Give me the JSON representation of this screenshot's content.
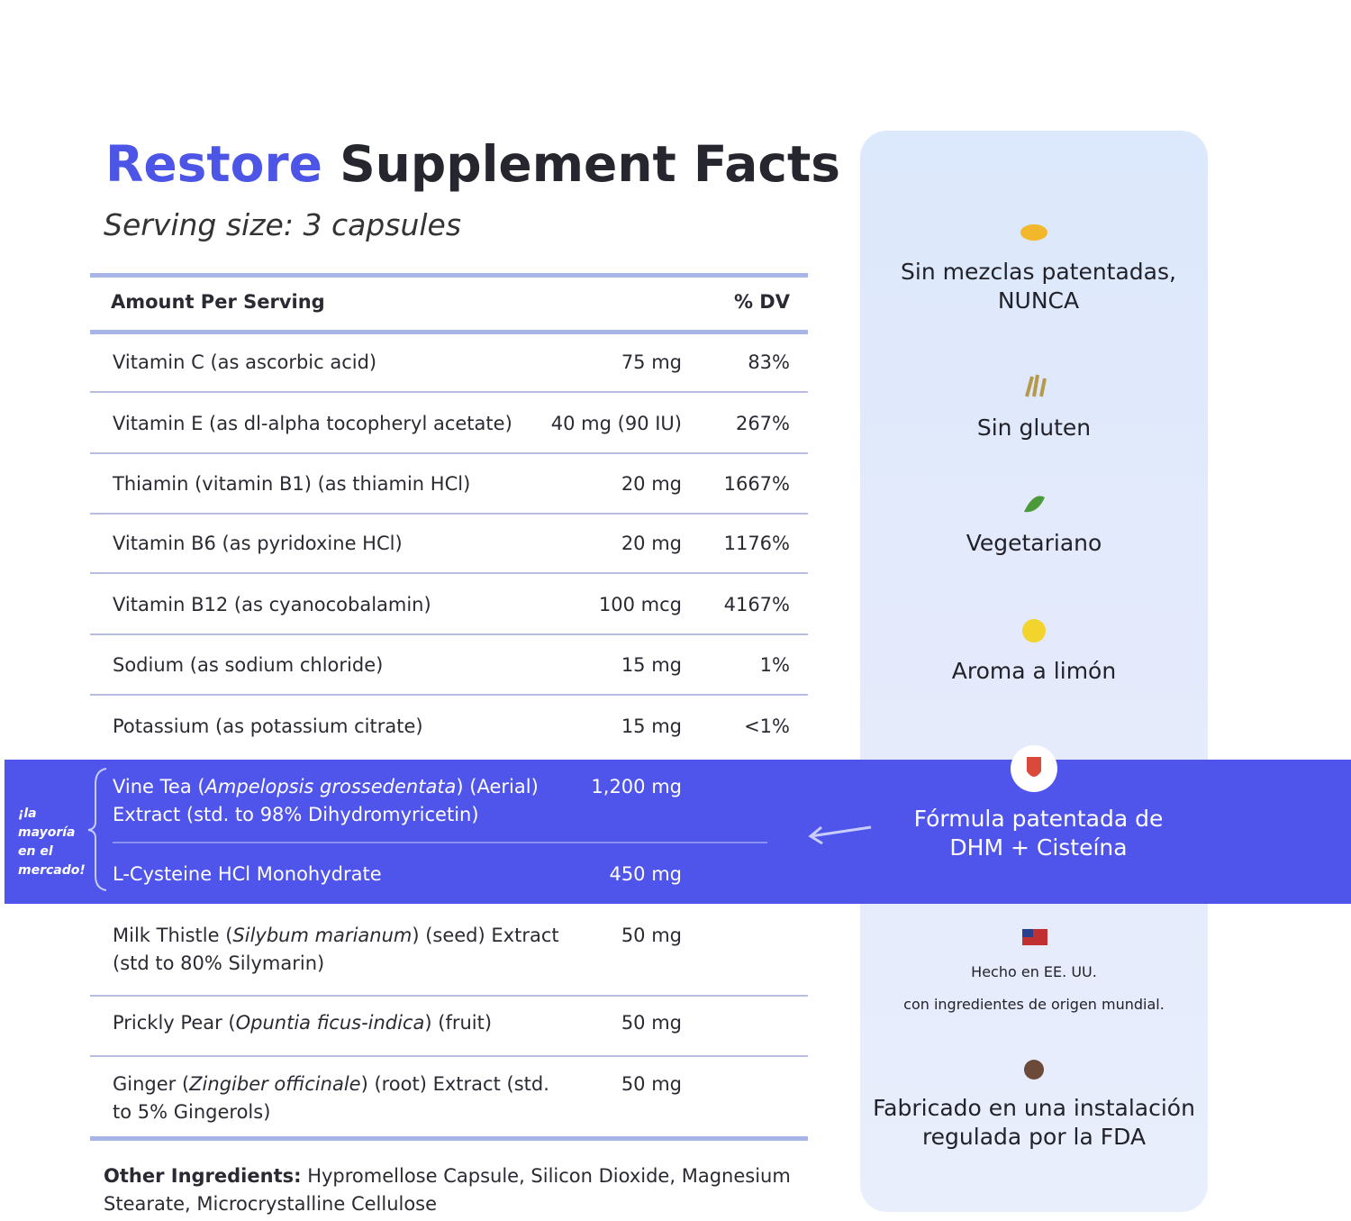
{
  "header": {
    "title_brand": "Restore",
    "title_rest": "Supplement Facts",
    "serving_size": "Serving size: 3 capsules"
  },
  "table": {
    "header": {
      "amount_per_serving": "Amount Per Serving",
      "dv": "% DV"
    },
    "rows": [
      {
        "name": "Vitamin C (as ascorbic acid)",
        "amount": "75 mg",
        "dv": "83%"
      },
      {
        "name": "Vitamin E (as dl-alpha tocopheryl acetate)",
        "amount": "40 mg (90 IU)",
        "dv": "267%"
      },
      {
        "name": "Thiamin (vitamin B1) (as thiamin HCl)",
        "amount": "20 mg",
        "dv": "1667%"
      },
      {
        "name": "Vitamin B6 (as pyridoxine HCl)",
        "amount": "20 mg",
        "dv": "1176%"
      },
      {
        "name": "Vitamin B12 (as cyanocobalamin)",
        "amount": "100 mcg",
        "dv": "4167%"
      },
      {
        "name": "Sodium (as sodium chloride)",
        "amount": "15 mg",
        "dv": "1%"
      },
      {
        "name": "Potassium (as potassium citrate)",
        "amount": "15 mg",
        "dv": "<1%"
      }
    ],
    "highlight": {
      "note": "¡la mayoría en el mercado!",
      "rows": [
        {
          "name": [
            "Vine Tea (",
            "Ampelopsis grossedentata",
            ") (Aerial) Extract (std. to 98% Dihydromyricetin)"
          ],
          "amount": "1,200 mg"
        },
        {
          "name": "L-Cysteine HCl Monohydrate",
          "amount": "450 mg"
        }
      ]
    },
    "rows_after": [
      {
        "name": [
          "Milk Thistle (",
          "Silybum marianum",
          ") (seed) Extract (std to 80% Silymarin)"
        ],
        "amount": "50 mg"
      },
      {
        "name": [
          "Prickly Pear (",
          "Opuntia ficus-indica",
          ") (fruit)"
        ],
        "amount": "50 mg"
      },
      {
        "name": [
          "Ginger (",
          "Zingiber officinale",
          ") (root) Extract (std. to 5% Gingerols)"
        ],
        "amount": "50 mg"
      }
    ]
  },
  "other_ingredients": {
    "label": "Other Ingredients:",
    "text": "Hypromellose Capsule, Silicon Dioxide, Magnesium Stearate, Microcrystalline Cellulose"
  },
  "features": [
    {
      "text": "Sin mezclas patentadas, NUNCA"
    },
    {
      "text": "Sin gluten"
    },
    {
      "text": "Vegetariano"
    },
    {
      "text": "Aroma a limón"
    },
    {
      "text": "Fórmula patentada de DHM + Cisteína"
    },
    {
      "lines": [
        "Hecho en EE. UU.",
        "con ingredientes de origen mundial."
      ]
    },
    {
      "text": "Fabricado en una instalación regulada por la FDA"
    }
  ]
}
